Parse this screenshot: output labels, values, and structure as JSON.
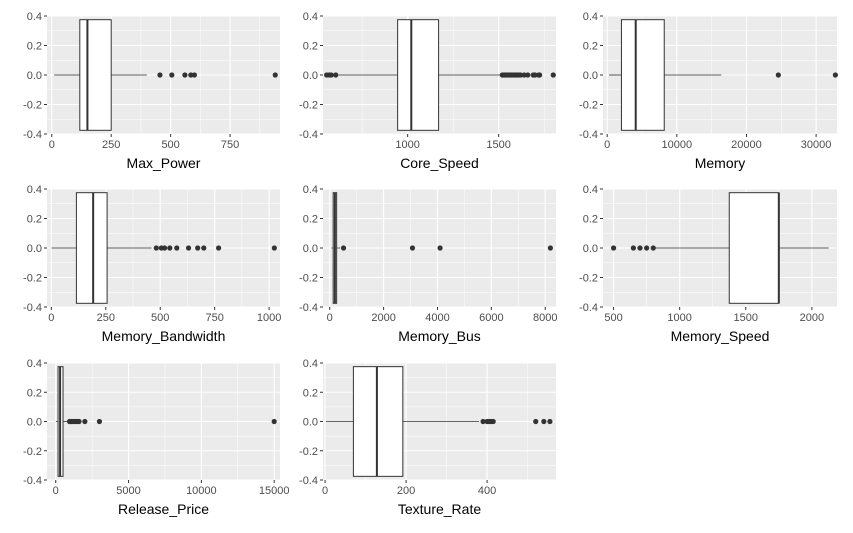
{
  "chart_data": [
    {
      "type": "boxplot",
      "xlabel": "Max_Power",
      "ylabel": "",
      "xlim": [
        -20,
        960
      ],
      "ylim": [
        -0.4,
        0.4
      ],
      "xticks": [
        0,
        250,
        500,
        750
      ],
      "yticks": [
        -0.4,
        -0.2,
        0.0,
        0.2,
        0.4
      ],
      "box": {
        "whisker_low": 10,
        "q1": 118,
        "median": 150,
        "q3": 250,
        "whisker_high": 400
      },
      "outliers": [
        455,
        505,
        560,
        585,
        600,
        940
      ],
      "grid": true
    },
    {
      "type": "boxplot",
      "xlabel": "Core_Speed",
      "ylabel": "",
      "xlim": [
        535,
        1815
      ],
      "ylim": [
        -0.4,
        0.4
      ],
      "xticks": [
        500,
        1000,
        1500
      ],
      "yticks": [
        -0.4,
        -0.2,
        0.0,
        0.2,
        0.4
      ],
      "box": {
        "whisker_low": 620,
        "q1": 945,
        "median": 1020,
        "q3": 1170,
        "whisker_high": 1510
      },
      "outliers": [
        555,
        570,
        580,
        605,
        1520,
        1530,
        1540,
        1550,
        1560,
        1570,
        1580,
        1590,
        1600,
        1610,
        1620,
        1640,
        1660,
        1690,
        1700,
        1720,
        1725,
        1800
      ],
      "grid": true
    },
    {
      "type": "boxplot",
      "xlabel": "Memory",
      "ylabel": "",
      "xlim": [
        -600,
        33000
      ],
      "ylim": [
        -0.4,
        0.4
      ],
      "xticks": [
        0,
        10000,
        20000,
        30000
      ],
      "yticks": [
        -0.4,
        -0.2,
        0.0,
        0.2,
        0.4
      ],
      "box": {
        "whisker_low": 256,
        "q1": 2048,
        "median": 4096,
        "q3": 8192,
        "whisker_high": 16384
      },
      "outliers": [
        24576,
        32768
      ],
      "grid": true
    },
    {
      "type": "boxplot",
      "xlabel": "Memory_Bandwidth",
      "ylabel": "",
      "xlim": [
        -20,
        1050
      ],
      "ylim": [
        -0.4,
        0.4
      ],
      "xticks": [
        0,
        250,
        500,
        750,
        1000
      ],
      "yticks": [
        -0.4,
        -0.2,
        0.0,
        0.2,
        0.4
      ],
      "box": {
        "whisker_low": 1,
        "q1": 115,
        "median": 192,
        "q3": 256,
        "whisker_high": 460
      },
      "outliers": [
        482,
        505,
        520,
        544,
        576,
        630,
        672,
        700,
        768,
        1024
      ],
      "grid": true
    },
    {
      "type": "boxplot",
      "xlabel": "Memory_Bus",
      "ylabel": "",
      "xlim": [
        -250,
        8400
      ],
      "ylim": [
        -0.4,
        0.4
      ],
      "xticks": [
        0,
        2000,
        4000,
        6000,
        8000
      ],
      "yticks": [
        -0.4,
        -0.2,
        0.0,
        0.2,
        0.4
      ],
      "box": {
        "whisker_low": 64,
        "q1": 128,
        "median": 192,
        "q3": 256,
        "whisker_high": 384
      },
      "outliers": [
        512,
        3072,
        4096,
        8192
      ],
      "grid": true
    },
    {
      "type": "boxplot",
      "xlabel": "Memory_Speed",
      "ylabel": "",
      "xlim": [
        420,
        2190
      ],
      "ylim": [
        -0.4,
        0.4
      ],
      "xticks": [
        500,
        1000,
        1500,
        2000
      ],
      "yticks": [
        -0.4,
        -0.2,
        0.0,
        0.2,
        0.4
      ],
      "box": {
        "whisker_low": 800,
        "q1": 1375,
        "median": 1750,
        "q3": 1750,
        "whisker_high": 2127
      },
      "outliers": [
        500,
        650,
        700,
        750,
        800
      ],
      "grid": true
    },
    {
      "type": "boxplot",
      "xlabel": "Release_Price",
      "ylabel": "",
      "xlim": [
        -600,
        15400
      ],
      "ylim": [
        -0.4,
        0.4
      ],
      "xticks": [
        0,
        5000,
        10000,
        15000
      ],
      "yticks": [
        -0.4,
        -0.2,
        0.0,
        0.2,
        0.4
      ],
      "box": {
        "whisker_low": 10,
        "q1": 160,
        "median": 300,
        "q3": 500,
        "whisker_high": 900
      },
      "outliers": [
        950,
        1000,
        1100,
        1200,
        1300,
        1400,
        1500,
        1600,
        2000,
        3000,
        15000
      ],
      "grid": true
    },
    {
      "type": "boxplot",
      "xlabel": "Texture_Rate",
      "ylabel": "",
      "xlim": [
        -5,
        570
      ],
      "ylim": [
        -0.4,
        0.4
      ],
      "xticks": [
        0,
        200,
        400
      ],
      "yticks": [
        -0.4,
        -0.2,
        0.0,
        0.2,
        0.4
      ],
      "box": {
        "whisker_low": 2,
        "q1": 70,
        "median": 128,
        "q3": 192,
        "whisker_high": 380
      },
      "outliers": [
        390,
        400,
        405,
        410,
        415,
        520,
        540,
        555
      ],
      "grid": true
    }
  ],
  "style": {
    "panel_bg": "#ebebeb",
    "grid_major": "#ffffff",
    "box_fill": "#ffffff",
    "box_stroke": "#333333",
    "outlier_color": "#333333",
    "tick_text": "#4d4d4d",
    "title_text": "#000000"
  }
}
